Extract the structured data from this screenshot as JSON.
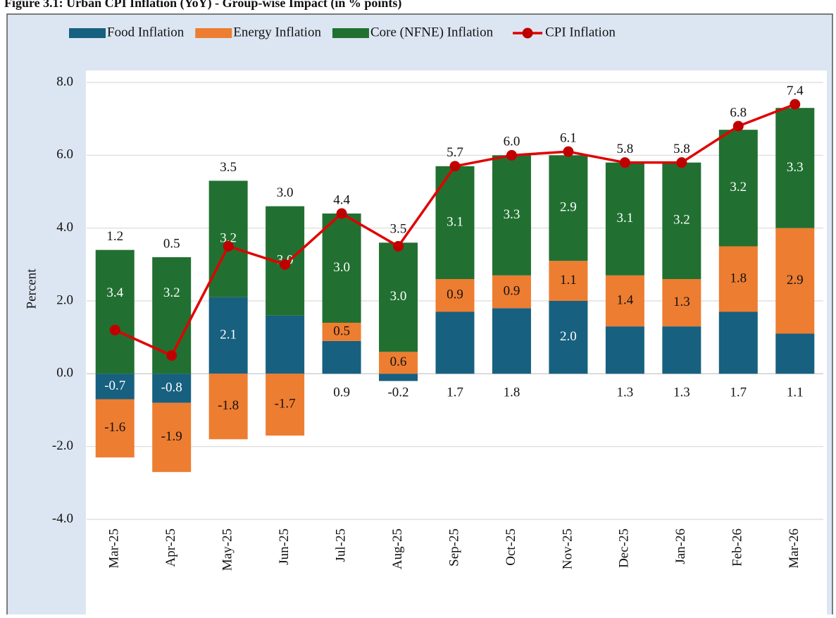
{
  "chart_data": {
    "type": "stacked-bar-line",
    "title": "Figure 3.1: Urban CPI Inflation (YoY) - Group-wise Impact (in % points)",
    "y_label": "Percent",
    "categories": [
      "Mar-25",
      "Apr-25",
      "May-25",
      "Jun-25",
      "Jul-25",
      "Aug-25",
      "Sep-25",
      "Oct-25",
      "Nov-25",
      "Dec-25",
      "Jan-26",
      "Feb-26",
      "Mar-26"
    ],
    "series": [
      {
        "name": "Food Inflation",
        "type": "bar",
        "color": "#17607f",
        "values": [
          -0.7,
          -0.8,
          2.1,
          1.6,
          0.9,
          -0.2,
          1.7,
          1.8,
          2.0,
          1.3,
          1.3,
          1.7,
          1.1
        ],
        "value_labels": [
          "-0.7",
          "-0.8",
          "2.1",
          "1.6",
          "0.9",
          "-0.2",
          "1.7",
          "1.8",
          "2.0",
          "1.3",
          "1.3",
          "1.7",
          "1.1"
        ]
      },
      {
        "name": "Energy Inflation",
        "type": "bar",
        "color": "#ed7d31",
        "values": [
          -1.6,
          -1.9,
          -1.8,
          -1.7,
          0.5,
          0.6,
          0.9,
          0.9,
          1.1,
          1.4,
          1.3,
          1.8,
          2.9
        ],
        "value_labels": [
          "-1.6",
          "-1.9",
          "-1.8",
          "-1.7",
          "0.5",
          "0.6",
          "0.9",
          "0.9",
          "1.1",
          "1.4",
          "1.3",
          "1.8",
          "2.9"
        ]
      },
      {
        "name": "Core (NFNE) Inflation",
        "type": "bar",
        "color": "#217031",
        "values": [
          3.4,
          3.2,
          3.2,
          3.0,
          3.0,
          3.0,
          3.1,
          3.3,
          2.9,
          3.1,
          3.2,
          3.2,
          3.3
        ],
        "value_labels": [
          "3.4",
          "3.2",
          "3.2",
          "3.0",
          "3.0",
          "3.0",
          "3.1",
          "3.3",
          "2.9",
          "3.1",
          "3.2",
          "3.2",
          "3.3"
        ]
      },
      {
        "name": "CPI Inflation",
        "type": "line",
        "color": "#e00000",
        "values": [
          1.2,
          0.5,
          3.5,
          3.0,
          4.4,
          3.5,
          5.7,
          6.0,
          6.1,
          5.8,
          5.8,
          6.8,
          7.4
        ],
        "value_labels": [
          "1.2",
          "0.5",
          "3.5",
          "3.0",
          "4.4",
          "3.5",
          "5.7",
          "6.0",
          "6.1",
          "5.8",
          "5.8",
          "6.8",
          "7.4"
        ]
      }
    ],
    "ylim": [
      -4,
      8
    ],
    "yticks": [
      {
        "value": -4,
        "label": "-4.0"
      },
      {
        "value": -2,
        "label": "-2.0"
      },
      {
        "value": 0,
        "label": "0.0"
      },
      {
        "value": 2,
        "label": "2.0"
      },
      {
        "value": 4,
        "label": "4.0"
      },
      {
        "value": 6,
        "label": "6.0"
      },
      {
        "value": 8,
        "label": "8.0"
      }
    ],
    "grid": true,
    "legend": "top"
  }
}
